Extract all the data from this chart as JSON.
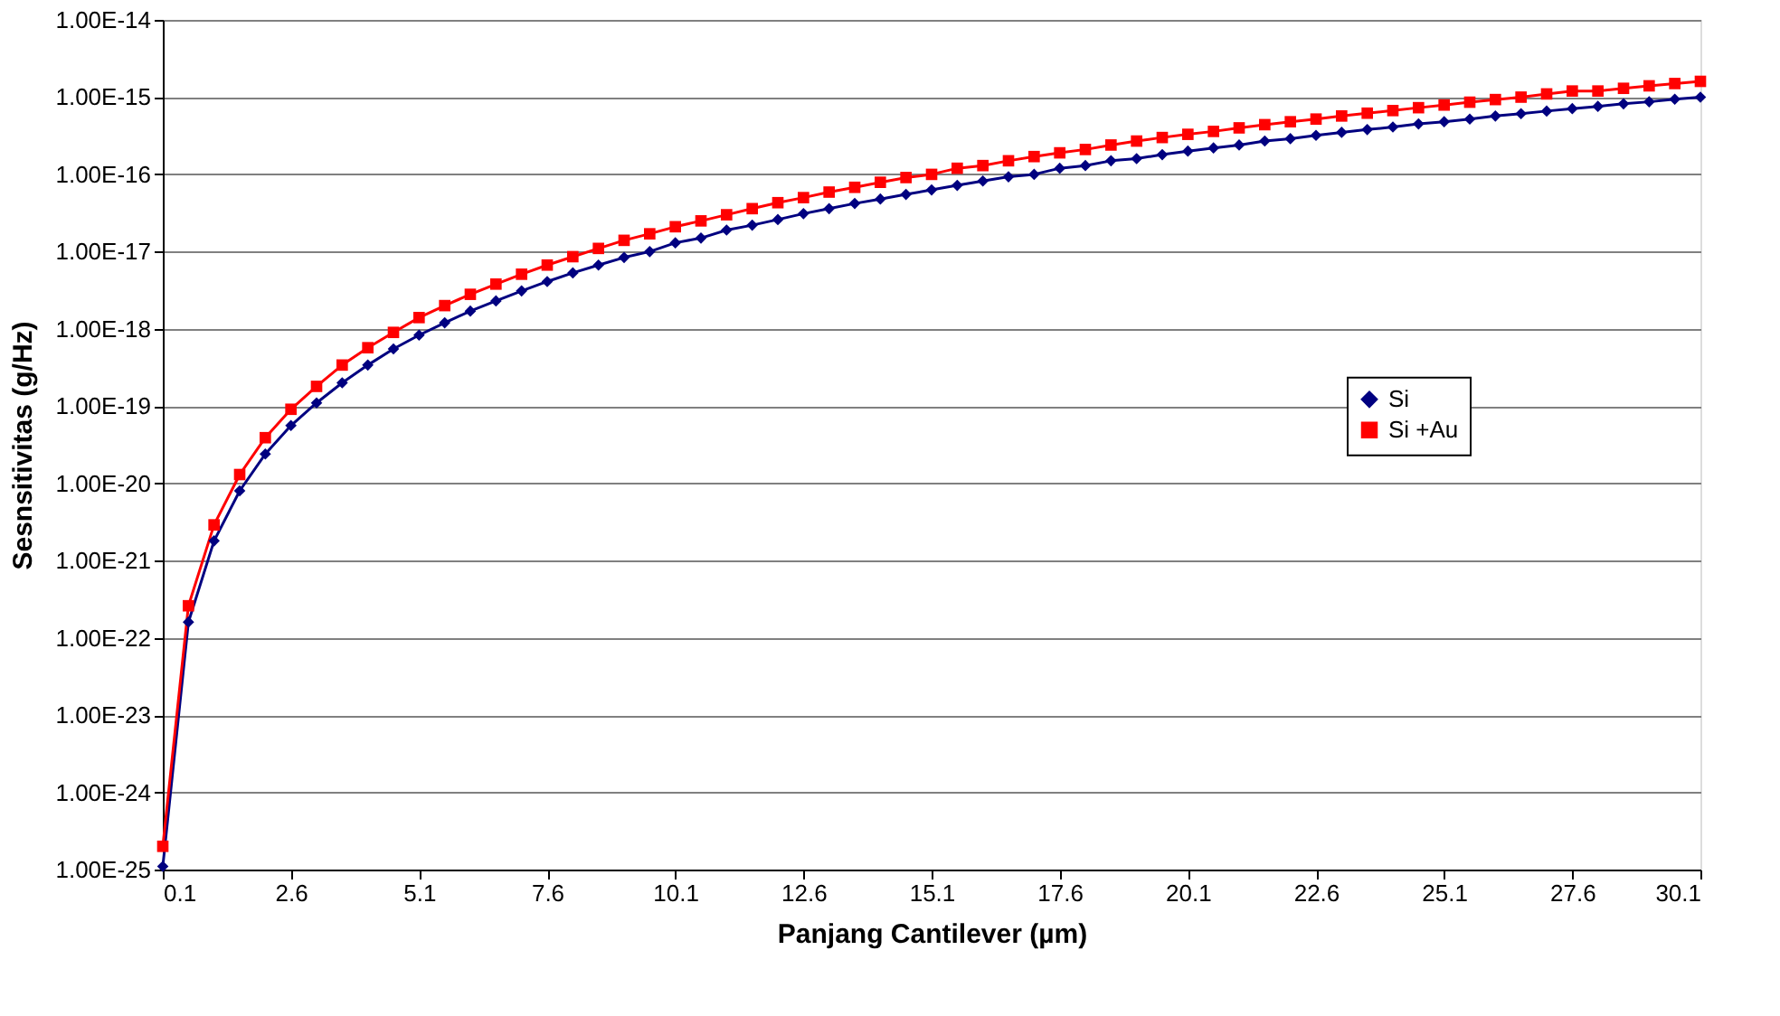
{
  "chart_data": {
    "type": "line",
    "xlabel": "Panjang Cantilever (µm)",
    "ylabel": "Sesnsitivitas (g/Hz)",
    "x": [
      0.1,
      0.6,
      1.1,
      1.6,
      2.1,
      2.6,
      3.1,
      3.6,
      4.1,
      4.6,
      5.1,
      5.6,
      6.1,
      6.6,
      7.1,
      7.6,
      8.1,
      8.6,
      9.1,
      9.6,
      10.1,
      10.6,
      11.1,
      11.6,
      12.1,
      12.6,
      13.1,
      13.6,
      14.1,
      14.6,
      15.1,
      15.6,
      16.1,
      16.6,
      17.1,
      17.6,
      18.1,
      18.6,
      19.1,
      19.6,
      20.1,
      20.6,
      21.1,
      21.6,
      22.1,
      22.6,
      23.1,
      23.6,
      24.1,
      24.6,
      25.1,
      25.6,
      26.1,
      26.6,
      27.1,
      27.6,
      28.1,
      28.6,
      29.1,
      29.6,
      30.1
    ],
    "series": [
      {
        "name": "Si",
        "color": "#000080",
        "marker": "diamond",
        "values": [
          1.1e-25,
          1.6e-22,
          1.8e-21,
          8e-21,
          2.4e-20,
          5.6e-20,
          1.1e-19,
          2e-19,
          3.4e-19,
          5.5e-19,
          8.3e-19,
          1.2e-18,
          1.7e-18,
          2.3e-18,
          3.1e-18,
          4.1e-18,
          5.3e-18,
          6.7e-18,
          8.4e-18,
          1e-17,
          1.3e-17,
          1.5e-17,
          1.9e-17,
          2.2e-17,
          2.6e-17,
          3.1e-17,
          3.6e-17,
          4.2e-17,
          4.8e-17,
          5.5e-17,
          6.3e-17,
          7.2e-17,
          8.2e-17,
          9.3e-17,
          1e-16,
          1.2e-16,
          1.3e-16,
          1.5e-16,
          1.6e-16,
          1.8e-16,
          2e-16,
          2.2e-16,
          2.4e-16,
          2.7e-16,
          2.9e-16,
          3.2e-16,
          3.5e-16,
          3.8e-16,
          4.1e-16,
          4.5e-16,
          4.8e-16,
          5.2e-16,
          5.7e-16,
          6.1e-16,
          6.6e-16,
          7.1e-16,
          7.6e-16,
          8.2e-16,
          8.7e-16,
          9.4e-16,
          1e-15
        ]
      },
      {
        "name": "Si +Au",
        "color": "#ff0000",
        "marker": "square",
        "values": [
          2e-25,
          2.6e-22,
          2.9e-21,
          1.3e-20,
          3.9e-20,
          9.1e-20,
          1.8e-19,
          3.4e-19,
          5.7e-19,
          9e-19,
          1.4e-18,
          2e-18,
          2.8e-18,
          3.8e-18,
          5.1e-18,
          6.7e-18,
          8.6e-18,
          1.1e-17,
          1.4e-17,
          1.7e-17,
          2.1e-17,
          2.5e-17,
          3e-17,
          3.6e-17,
          4.3e-17,
          5e-17,
          5.9e-17,
          6.8e-17,
          7.9e-17,
          9.1e-17,
          1e-16,
          1.2e-16,
          1.3e-16,
          1.5e-16,
          1.7e-16,
          1.9e-16,
          2.1e-16,
          2.4e-16,
          2.7e-16,
          3e-16,
          3.3e-16,
          3.6e-16,
          4e-16,
          4.4e-16,
          4.8e-16,
          5.2e-16,
          5.7e-16,
          6.2e-16,
          6.7e-16,
          7.3e-16,
          7.9e-16,
          8.6e-16,
          9.3e-16,
          1e-15,
          1.1e-15,
          1.2e-15,
          1.2e-15,
          1.3e-15,
          1.4e-15,
          1.5e-15,
          1.6e-15
        ]
      }
    ],
    "xlim": [
      0.1,
      30.1
    ],
    "xticks": [
      0.1,
      2.6,
      5.1,
      7.6,
      10.1,
      12.6,
      15.1,
      17.6,
      20.1,
      22.6,
      25.1,
      27.6,
      30.1
    ],
    "ylim": [
      1e-25,
      1e-14
    ],
    "yticks": [
      {
        "value": 1e-25,
        "label": "1.00E-25"
      },
      {
        "value": 1e-24,
        "label": "1.00E-24"
      },
      {
        "value": 1e-23,
        "label": "1.00E-23"
      },
      {
        "value": 1e-22,
        "label": "1.00E-22"
      },
      {
        "value": 1e-21,
        "label": "1.00E-21"
      },
      {
        "value": 1e-20,
        "label": "1.00E-20"
      },
      {
        "value": 1e-19,
        "label": "1.00E-19"
      },
      {
        "value": 1e-18,
        "label": "1.00E-18"
      },
      {
        "value": 1e-17,
        "label": "1.00E-17"
      },
      {
        "value": 1e-16,
        "label": "1.00E-16"
      },
      {
        "value": 1e-15,
        "label": "1.00E-15"
      },
      {
        "value": 1e-14,
        "label": "1.00E-14"
      }
    ],
    "log": "y",
    "grid": "y",
    "legend": "right",
    "line_style": "solid"
  }
}
